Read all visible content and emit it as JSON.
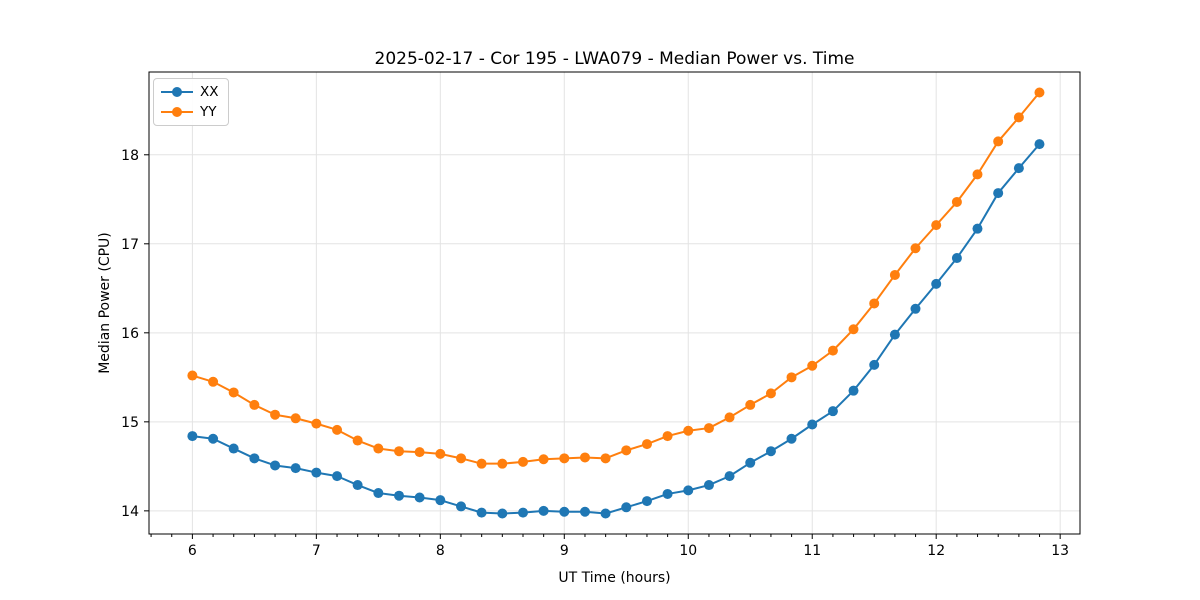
{
  "chart_data": {
    "type": "line",
    "title": "2025-02-17 - Cor 195 - LWA079 - Median Power vs. Time",
    "xlabel": "UT Time (hours)",
    "ylabel": "Median Power (CPU)",
    "xlim": [
      5.65,
      13.16
    ],
    "ylim": [
      13.74,
      18.93
    ],
    "xticks": [
      6,
      7,
      8,
      9,
      10,
      11,
      12,
      13
    ],
    "yticks": [
      14,
      15,
      16,
      17,
      18
    ],
    "x_minor_tick_step": 0.16667,
    "grid": true,
    "legend_position": "upper-left",
    "colors": {
      "grid": "#e3e3e3",
      "spine": "#000000",
      "text": "#000000",
      "legend_border": "#cccccc"
    },
    "x": [
      6.0,
      6.167,
      6.333,
      6.5,
      6.667,
      6.833,
      7.0,
      7.167,
      7.333,
      7.5,
      7.667,
      7.833,
      8.0,
      8.167,
      8.333,
      8.5,
      8.667,
      8.833,
      9.0,
      9.167,
      9.333,
      9.5,
      9.667,
      9.833,
      10.0,
      10.167,
      10.333,
      10.5,
      10.667,
      10.833,
      11.0,
      11.167,
      11.333,
      11.5,
      11.667,
      11.833,
      12.0,
      12.167,
      12.333,
      12.5,
      12.667,
      12.833
    ],
    "series": [
      {
        "name": "XX",
        "color": "#1f77b4",
        "values": [
          14.84,
          14.81,
          14.7,
          14.59,
          14.51,
          14.48,
          14.43,
          14.39,
          14.29,
          14.2,
          14.17,
          14.15,
          14.12,
          14.05,
          13.98,
          13.97,
          13.98,
          14.0,
          13.99,
          13.99,
          13.97,
          14.04,
          14.11,
          14.19,
          14.23,
          14.29,
          14.39,
          14.54,
          14.67,
          14.81,
          14.97,
          15.12,
          15.35,
          15.64,
          15.98,
          16.27,
          16.55,
          16.84,
          17.17,
          17.57,
          17.85,
          18.12
        ]
      },
      {
        "name": "YY",
        "color": "#ff7f0e",
        "values": [
          15.52,
          15.45,
          15.33,
          15.19,
          15.08,
          15.04,
          14.98,
          14.91,
          14.79,
          14.7,
          14.67,
          14.66,
          14.64,
          14.59,
          14.53,
          14.53,
          14.55,
          14.58,
          14.59,
          14.6,
          14.59,
          14.68,
          14.75,
          14.84,
          14.9,
          14.93,
          15.05,
          15.19,
          15.32,
          15.5,
          15.63,
          15.8,
          16.04,
          16.33,
          16.65,
          16.95,
          17.21,
          17.47,
          17.78,
          18.15,
          18.42,
          18.7
        ]
      }
    ]
  }
}
